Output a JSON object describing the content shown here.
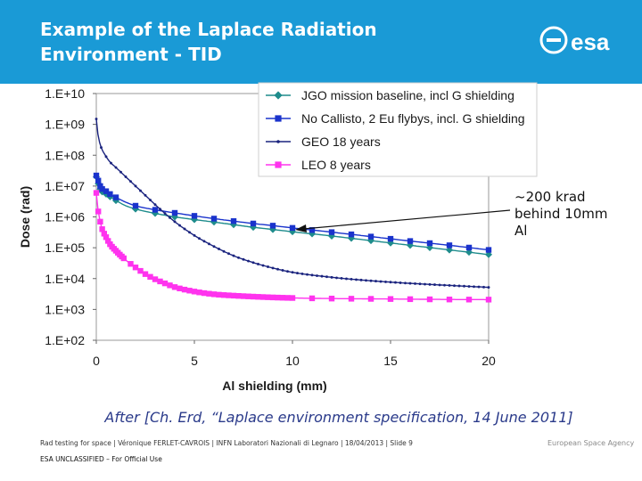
{
  "slide": {
    "title": "Example of the Laplace Radiation Environment - TID",
    "logo_text": "esa",
    "annotation": "~200 krad behind 10mm Al",
    "citation": "After [Ch. Erd, “Laplace environment specification, 14 June 2011]",
    "footer": "Rad testing for space | Véronique FERLET-CAVROIS | INFN Laboratori Nazionali di Legnaro | 18/04/2013 | Slide  9",
    "footer_brand": "European Space Agency",
    "classification": "ESA UNCLASSIFIED – For Official Use",
    "colors": {
      "header": "#1a9ad6",
      "citation": "#2a3a8a"
    }
  },
  "chart_data": {
    "type": "line",
    "xlabel": "Al shielding (mm)",
    "ylabel": "Dose (rad)",
    "xlim": [
      0,
      20
    ],
    "ylim": [
      100,
      10000000000
    ],
    "yscale": "log",
    "x_ticks": [
      0,
      5,
      10,
      15,
      20
    ],
    "x_tick_labels": [
      "0",
      "5",
      "10",
      "15",
      "20"
    ],
    "y_ticks": [
      100,
      1000,
      10000,
      100000,
      1000000,
      10000000,
      100000000,
      1000000000,
      10000000000
    ],
    "y_tick_labels": [
      "1.E+02",
      "1.E+03",
      "1.E+04",
      "1.E+05",
      "1.E+06",
      "1.E+07",
      "1.E+08",
      "1.E+09",
      "1.E+10"
    ],
    "grid": false,
    "legend_position": "top-right",
    "series": [
      {
        "name": "JGO mission baseline, incl G shielding",
        "color": "#1e8c8c",
        "marker": "diamond",
        "x": [
          0,
          0.1,
          0.2,
          0.3,
          0.5,
          0.7,
          1,
          1.5,
          2,
          3,
          4,
          5,
          6,
          7,
          8,
          9,
          10,
          12,
          14,
          16,
          18,
          20
        ],
        "y": [
          20000000,
          12000000,
          8000000,
          6500000,
          5500000,
          4500000,
          3400000,
          2300000,
          1800000,
          1300000,
          1000000,
          820000,
          680000,
          560000,
          460000,
          390000,
          330000,
          240000,
          170000,
          120000,
          85000,
          60000
        ]
      },
      {
        "name": "No Callisto, 2 Eu flybys, incl. G shielding",
        "color": "#1a33cc",
        "marker": "square",
        "x": [
          0,
          0.1,
          0.2,
          0.3,
          0.5,
          0.7,
          1,
          1.5,
          2,
          3,
          4,
          5,
          6,
          7,
          8,
          9,
          10,
          12,
          14,
          16,
          18,
          20
        ],
        "y": [
          22000000,
          15000000,
          10000000,
          8000000,
          6800000,
          5500000,
          4300000,
          3000000,
          2300000,
          1700000,
          1350000,
          1080000,
          880000,
          730000,
          610000,
          520000,
          440000,
          320000,
          230000,
          165000,
          120000,
          85000
        ]
      },
      {
        "name": "GEO 18 years",
        "color": "#1a237e",
        "marker": "dot",
        "x": [
          0,
          0.1,
          0.2,
          0.3,
          0.5,
          0.7,
          1,
          1.5,
          2,
          2.5,
          3,
          3.5,
          4,
          5,
          6,
          7,
          8,
          9,
          10,
          12,
          14,
          16,
          18,
          20
        ],
        "y": [
          1500000000,
          400000000,
          220000000,
          150000000,
          90000000,
          60000000,
          40000000,
          20000000,
          10000000,
          5000000,
          2500000,
          1300000,
          700000,
          250000,
          110000,
          55000,
          33000,
          22000,
          16000,
          11000,
          8500,
          7000,
          6000,
          5200
        ]
      },
      {
        "name": "LEO 8 years",
        "color": "#ff33ee",
        "marker": "square",
        "x": [
          0,
          0.1,
          0.2,
          0.3,
          0.5,
          0.7,
          1,
          1.5,
          2,
          2.5,
          3,
          3.5,
          4,
          5,
          6,
          7,
          8,
          9,
          10,
          12,
          14,
          16,
          18,
          20
        ],
        "y": [
          6000000,
          1500000,
          700000,
          400000,
          220000,
          130000,
          80000,
          40000,
          23000,
          14000,
          9500,
          7000,
          5300,
          3800,
          3100,
          2800,
          2600,
          2450,
          2350,
          2250,
          2200,
          2150,
          2100,
          2080
        ]
      }
    ]
  }
}
